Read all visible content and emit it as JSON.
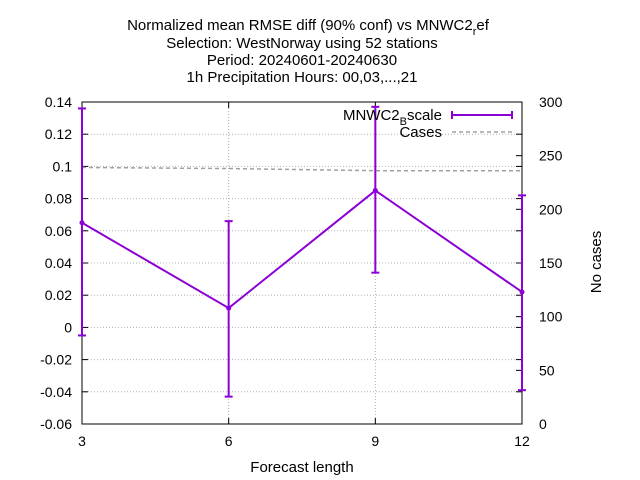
{
  "chart_data": {
    "type": "line",
    "title_lines": [
      "Normalized mean RMSE diff (90% conf) vs MNWC2_ref",
      "Selection: WestNorway using    52 stations",
      "Period: 20240601-20240630",
      "1h Precipitation   Hours: 00,03,...,21"
    ],
    "xlabel": "Forecast length",
    "ylabel": "",
    "y2label": "No cases",
    "x": [
      3,
      6,
      9,
      12
    ],
    "xticks": [
      "3",
      "6",
      "9",
      "12"
    ],
    "xlim": [
      3,
      12
    ],
    "ylim": [
      -0.06,
      0.14
    ],
    "yticks": [
      "-0.06",
      "-0.04",
      "-0.02",
      "0",
      "0.02",
      "0.04",
      "0.06",
      "0.08",
      "0.1",
      "0.12",
      "0.14"
    ],
    "y2lim": [
      0,
      300
    ],
    "y2ticks": [
      "0",
      "50",
      "100",
      "150",
      "200",
      "250",
      "300"
    ],
    "grid": true,
    "legend_position": "top-right",
    "series": [
      {
        "name": "MNWC2_Bscale",
        "axis": "y",
        "color": "#8b00d4",
        "style": "line with errorbars",
        "values": [
          0.065,
          0.012,
          0.085,
          0.022
        ],
        "err_low": [
          -0.005,
          -0.043,
          0.034,
          -0.039
        ],
        "err_high": [
          0.136,
          0.066,
          0.137,
          0.082
        ]
      },
      {
        "name": "Cases",
        "axis": "y2",
        "color": "#a0a0a0",
        "style": "dashed",
        "values": [
          239,
          238,
          236,
          236
        ]
      }
    ]
  }
}
